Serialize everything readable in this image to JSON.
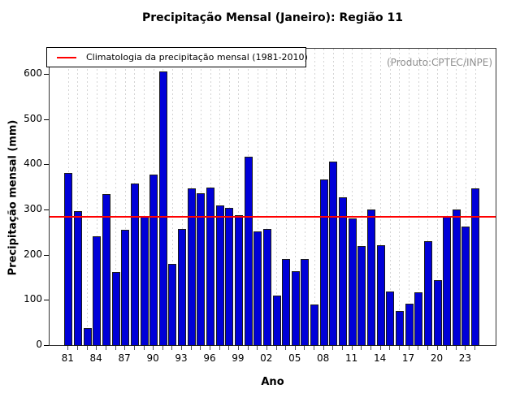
{
  "title": "Precipitação Mensal (Janeiro): Região 11",
  "watermark": "(Produto:CPTEC/INPE)",
  "legend": {
    "label": "Climatologia da precipitação mensal (1981-2010)"
  },
  "axes": {
    "xlabel": "Ano",
    "ylabel": "Precipitação mensal (mm)"
  },
  "colors": {
    "bar_fill": "#0000d8",
    "bar_border": "#1a1a1a",
    "climatology_line": "#ff0000",
    "grid": "#d4d4d4",
    "watermark_text": "#8f8f8f"
  },
  "chart_data": {
    "type": "bar",
    "title": "Precipitação Mensal (Janeiro): Região 11",
    "xlabel": "Ano",
    "ylabel": "Precipitação mensal (mm)",
    "x": [
      1981,
      1982,
      1983,
      1984,
      1985,
      1986,
      1987,
      1988,
      1989,
      1990,
      1991,
      1992,
      1993,
      1994,
      1995,
      1996,
      1997,
      1998,
      1999,
      2000,
      2001,
      2002,
      2003,
      2004,
      2005,
      2006,
      2007,
      2008,
      2009,
      2010,
      2011,
      2012,
      2013,
      2014,
      2015,
      2016,
      2017,
      2018,
      2019,
      2020,
      2021,
      2022,
      2023,
      2024
    ],
    "values": [
      383,
      299,
      40,
      242,
      336,
      164,
      257,
      359,
      285,
      379,
      608,
      182,
      258,
      349,
      338,
      351,
      311,
      306,
      289,
      418,
      253,
      259,
      111,
      193,
      165,
      192,
      91,
      368,
      408,
      329,
      283,
      221,
      301,
      223,
      121,
      78,
      94,
      118,
      231,
      145,
      287,
      302,
      265,
      349
    ],
    "climatology_value": 285,
    "series_name": "Precipitação mensal",
    "legend_entries": [
      "Climatologia da precipitação mensal (1981-2010)"
    ],
    "yticks": [
      0,
      100,
      200,
      300,
      400,
      500,
      600
    ],
    "ylim": [
      0,
      660
    ],
    "xtick_labels": [
      "81",
      "84",
      "87",
      "90",
      "93",
      "96",
      "99",
      "02",
      "05",
      "08",
      "11",
      "14",
      "17",
      "20",
      "23"
    ],
    "xtick_years": [
      1981,
      1984,
      1987,
      1990,
      1993,
      1996,
      1999,
      2002,
      2005,
      2008,
      2011,
      2014,
      2017,
      2020,
      2023
    ],
    "grid": "vertical-dotted",
    "legend_position": "top-left",
    "annotation": "(Produto:CPTEC/INPE)"
  }
}
